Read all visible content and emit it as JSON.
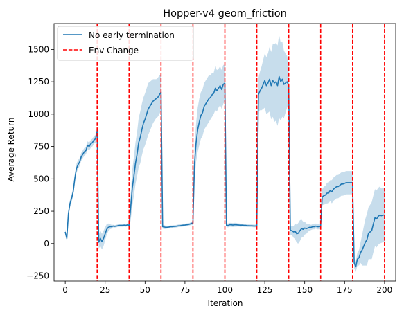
{
  "chart_data": {
    "type": "line",
    "title": "Hopper-v4 geom_friction",
    "xlabel": "Iteration",
    "ylabel": "Average Return",
    "xlim": [
      -7,
      207
    ],
    "ylim": [
      -290,
      1700
    ],
    "xticks": [
      0,
      25,
      50,
      75,
      100,
      125,
      150,
      175,
      200
    ],
    "yticks": [
      -250,
      0,
      250,
      500,
      750,
      1000,
      1250,
      1500
    ],
    "grid": false,
    "legend_position": "top-left",
    "legend": {
      "line_label": "No early termination",
      "vline_label": "Env Change"
    },
    "vlines": [
      20,
      40,
      60,
      80,
      100,
      120,
      140,
      160,
      180,
      200
    ],
    "series": [
      {
        "name": "No early termination",
        "color": "#1f77b4",
        "x": [
          0,
          1,
          2,
          3,
          4,
          5,
          6,
          7,
          8,
          9,
          10,
          11,
          12,
          13,
          14,
          15,
          16,
          17,
          18,
          19,
          20,
          21,
          22,
          23,
          24,
          25,
          26,
          27,
          28,
          29,
          30,
          31,
          32,
          33,
          34,
          35,
          36,
          37,
          38,
          39,
          40,
          41,
          42,
          43,
          44,
          45,
          46,
          47,
          48,
          49,
          50,
          51,
          52,
          53,
          54,
          55,
          56,
          57,
          58,
          59,
          60,
          61,
          62,
          63,
          64,
          65,
          66,
          67,
          68,
          69,
          70,
          71,
          72,
          73,
          74,
          75,
          76,
          77,
          78,
          79,
          80,
          81,
          82,
          83,
          84,
          85,
          86,
          87,
          88,
          89,
          90,
          91,
          92,
          93,
          94,
          95,
          96,
          97,
          98,
          99,
          100,
          101,
          102,
          103,
          104,
          105,
          106,
          107,
          108,
          109,
          110,
          111,
          112,
          113,
          114,
          115,
          116,
          117,
          118,
          119,
          120,
          121,
          122,
          123,
          124,
          125,
          126,
          127,
          128,
          129,
          130,
          131,
          132,
          133,
          134,
          135,
          136,
          137,
          138,
          139,
          140,
          141,
          142,
          143,
          144,
          145,
          146,
          147,
          148,
          149,
          150,
          151,
          152,
          153,
          154,
          155,
          156,
          157,
          158,
          159,
          160,
          161,
          162,
          163,
          164,
          165,
          166,
          167,
          168,
          169,
          170,
          171,
          172,
          173,
          174,
          175,
          176,
          177,
          178,
          179,
          180,
          181,
          182,
          183,
          184,
          185,
          186,
          187,
          188,
          189,
          190,
          191,
          192,
          193,
          194,
          195,
          196,
          197,
          198,
          199,
          200
        ],
        "y": [
          90,
          40,
          230,
          310,
          350,
          400,
          500,
          580,
          610,
          630,
          670,
          690,
          710,
          720,
          760,
          750,
          770,
          780,
          800,
          810,
          870,
          10,
          40,
          15,
          40,
          75,
          110,
          125,
          130,
          130,
          135,
          133,
          135,
          138,
          140,
          140,
          140,
          142,
          140,
          145,
          140,
          280,
          430,
          520,
          620,
          690,
          780,
          820,
          880,
          930,
          960,
          1000,
          1040,
          1060,
          1080,
          1100,
          1110,
          1120,
          1130,
          1150,
          1170,
          130,
          128,
          125,
          126,
          128,
          130,
          130,
          132,
          133,
          135,
          137,
          138,
          140,
          142,
          143,
          145,
          147,
          150,
          155,
          160,
          620,
          780,
          880,
          940,
          990,
          1010,
          1060,
          1080,
          1100,
          1120,
          1130,
          1150,
          1160,
          1200,
          1180,
          1200,
          1220,
          1190,
          1230,
          1240,
          140,
          140,
          145,
          145,
          143,
          145,
          145,
          144,
          143,
          142,
          142,
          140,
          140,
          138,
          138,
          137,
          137,
          136,
          136,
          135,
          1150,
          1180,
          1200,
          1230,
          1260,
          1220,
          1240,
          1270,
          1220,
          1260,
          1240,
          1250,
          1220,
          1290,
          1250,
          1270,
          1230,
          1240,
          1250,
          1220,
          100,
          100,
          90,
          95,
          75,
          80,
          100,
          115,
          110,
          120,
          115,
          120,
          125,
          125,
          130,
          130,
          135,
          130,
          130,
          135,
          360,
          370,
          375,
          390,
          390,
          410,
          400,
          420,
          430,
          440,
          440,
          450,
          460,
          460,
          465,
          470,
          470,
          470,
          470,
          470,
          -150,
          -180,
          -120,
          -110,
          -70,
          -50,
          -20,
          10,
          30,
          80,
          90,
          100,
          150,
          200,
          190,
          210,
          220,
          215,
          220,
          220
        ]
      }
    ],
    "band_half_width": [
      20,
      20,
      25,
      30,
      30,
      30,
      35,
      35,
      35,
      30,
      30,
      30,
      30,
      30,
      30,
      30,
      30,
      30,
      30,
      30,
      30,
      50,
      60,
      60,
      60,
      50,
      40,
      30,
      20,
      15,
      10,
      10,
      10,
      10,
      10,
      10,
      10,
      10,
      10,
      10,
      10,
      100,
      140,
      150,
      160,
      170,
      190,
      200,
      200,
      200,
      200,
      200,
      200,
      190,
      180,
      170,
      160,
      150,
      150,
      150,
      140,
      15,
      15,
      12,
      10,
      10,
      10,
      10,
      10,
      10,
      10,
      10,
      10,
      10,
      10,
      10,
      10,
      10,
      10,
      10,
      20,
      130,
      150,
      170,
      180,
      180,
      180,
      180,
      180,
      180,
      180,
      170,
      170,
      160,
      170,
      160,
      150,
      150,
      150,
      150,
      140,
      15,
      15,
      15,
      15,
      15,
      15,
      15,
      12,
      12,
      12,
      10,
      10,
      10,
      10,
      10,
      10,
      10,
      10,
      10,
      10,
      130,
      150,
      170,
      190,
      210,
      220,
      230,
      250,
      260,
      280,
      300,
      300,
      310,
      320,
      300,
      290,
      260,
      230,
      200,
      150,
      30,
      35,
      45,
      60,
      70,
      80,
      80,
      70,
      60,
      50,
      40,
      30,
      25,
      20,
      20,
      20,
      20,
      20,
      20,
      20,
      60,
      70,
      70,
      80,
      80,
      80,
      90,
      90,
      90,
      90,
      90,
      90,
      90,
      90,
      90,
      90,
      90,
      90,
      90,
      90,
      40,
      40,
      50,
      60,
      80,
      120,
      150,
      180,
      200,
      200,
      210,
      220,
      220,
      220,
      220,
      220,
      220,
      210,
      210,
      210
    ]
  }
}
